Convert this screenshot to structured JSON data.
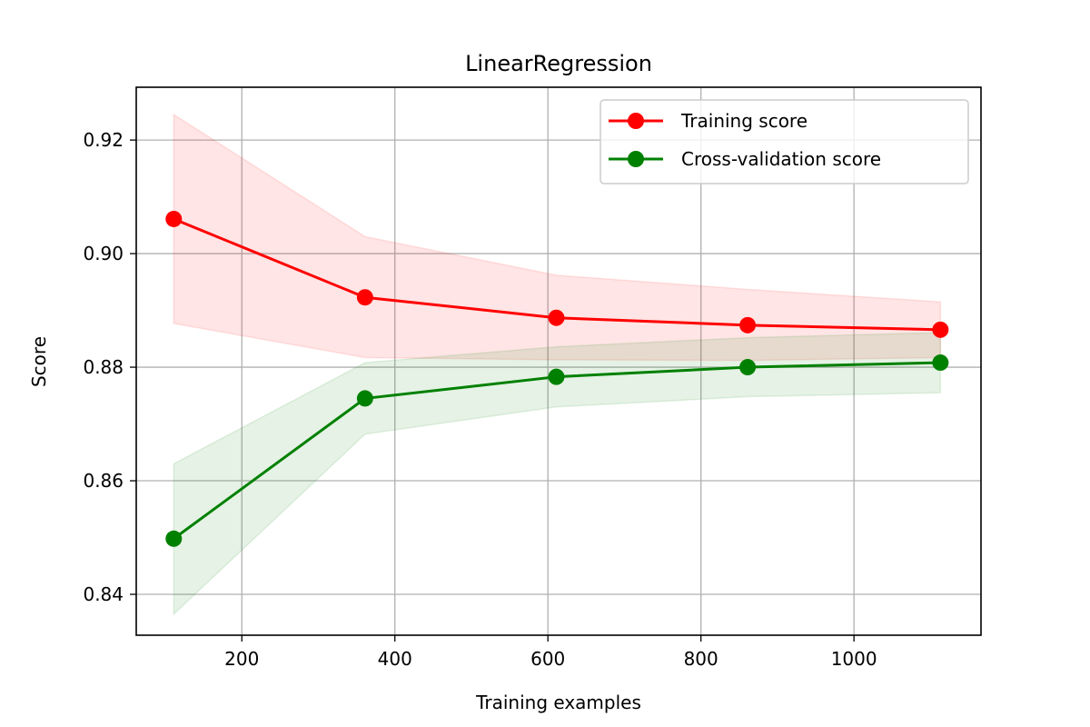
{
  "chart_data": {
    "type": "line",
    "title": "LinearRegression",
    "xlabel": "Training examples",
    "ylabel": "Score",
    "xlim": [
      62,
      1166
    ],
    "ylim": [
      0.8328,
      0.9293
    ],
    "xticks": [
      200,
      400,
      600,
      800,
      1000
    ],
    "xtick_labels": [
      "200",
      "400",
      "600",
      "800",
      "1000"
    ],
    "yticks": [
      0.84,
      0.86,
      0.88,
      0.9,
      0.92
    ],
    "ytick_labels": [
      "0.84",
      "0.86",
      "0.88",
      "0.90",
      "0.92"
    ],
    "grid": true,
    "legend_position": "top-right",
    "x": [
      111,
      361,
      611,
      861,
      1113
    ],
    "series": [
      {
        "name": "Training score",
        "color": "#ff0000",
        "band_color": "#ff0000",
        "values": [
          0.9061,
          0.8923,
          0.8887,
          0.8874,
          0.8866
        ],
        "lower": [
          0.8877,
          0.8817,
          0.8813,
          0.8812,
          0.8817
        ],
        "upper": [
          0.9245,
          0.903,
          0.8962,
          0.8937,
          0.8915
        ]
      },
      {
        "name": "Cross-validation score",
        "color": "#008000",
        "band_color": "#008000",
        "values": [
          0.8498,
          0.8745,
          0.8783,
          0.88,
          0.8808
        ],
        "lower": [
          0.8365,
          0.8682,
          0.873,
          0.8748,
          0.8755
        ],
        "upper": [
          0.863,
          0.8808,
          0.8836,
          0.8852,
          0.8861
        ]
      }
    ]
  }
}
